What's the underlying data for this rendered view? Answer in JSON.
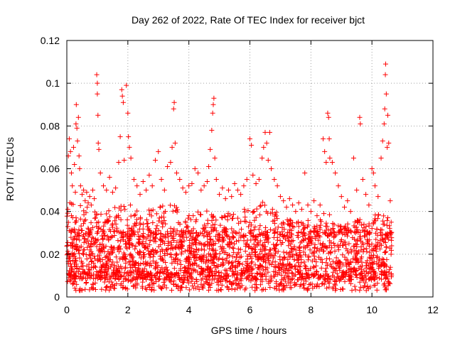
{
  "chart_data": {
    "type": "scatter",
    "title": "Day 262 of 2022, Rate Of TEC Index for receiver bjct",
    "xlabel": "GPS time / hours",
    "ylabel": "ROTI / TECUs",
    "xlim": [
      0,
      12
    ],
    "ylim": [
      0,
      0.12
    ],
    "x_ticks": [
      0,
      2,
      4,
      6,
      8,
      10,
      12
    ],
    "x_tick_labels": [
      "0",
      "2",
      "4",
      "6",
      "8",
      "10",
      "12"
    ],
    "y_ticks": [
      0,
      0.02,
      0.04,
      0.06,
      0.08,
      0.1,
      0.12
    ],
    "y_tick_labels": [
      "0",
      "0.02",
      "0.04",
      "0.06",
      "0.08",
      "0.1",
      "0.12"
    ],
    "grid": true,
    "marker": "+",
    "marker_color": "#ff0000",
    "series": [
      {
        "name": "ROTI",
        "points": [
          [
            0.05,
            0.066
          ],
          [
            0.08,
            0.074
          ],
          [
            0.12,
            0.068
          ],
          [
            0.15,
            0.058
          ],
          [
            0.18,
            0.052
          ],
          [
            0.22,
            0.07
          ],
          [
            0.25,
            0.062
          ],
          [
            0.28,
            0.049
          ],
          [
            0.3,
            0.081
          ],
          [
            0.31,
            0.09
          ],
          [
            0.33,
            0.079
          ],
          [
            0.35,
            0.073
          ],
          [
            0.38,
            0.084
          ],
          [
            0.4,
            0.066
          ],
          [
            0.42,
            0.06
          ],
          [
            0.45,
            0.052
          ],
          [
            0.5,
            0.048
          ],
          [
            0.55,
            0.05
          ],
          [
            0.6,
            0.045
          ],
          [
            0.65,
            0.049
          ],
          [
            0.7,
            0.044
          ],
          [
            0.75,
            0.047
          ],
          [
            0.8,
            0.043
          ],
          [
            0.85,
            0.05
          ],
          [
            0.9,
            0.046
          ],
          [
            0.98,
            0.104
          ],
          [
            1.0,
            0.1
          ],
          [
            1.0,
            0.095
          ],
          [
            1.02,
            0.085
          ],
          [
            1.03,
            0.072
          ],
          [
            1.05,
            0.069
          ],
          [
            1.1,
            0.058
          ],
          [
            1.2,
            0.052
          ],
          [
            1.3,
            0.05
          ],
          [
            1.4,
            0.056
          ],
          [
            1.5,
            0.049
          ],
          [
            1.6,
            0.051
          ],
          [
            1.7,
            0.063
          ],
          [
            1.75,
            0.075
          ],
          [
            1.8,
            0.097
          ],
          [
            1.82,
            0.094
          ],
          [
            1.85,
            0.091
          ],
          [
            1.88,
            0.064
          ],
          [
            1.95,
            0.099
          ],
          [
            2.0,
            0.086
          ],
          [
            2.02,
            0.075
          ],
          [
            2.05,
            0.07
          ],
          [
            2.1,
            0.065
          ],
          [
            2.2,
            0.055
          ],
          [
            2.3,
            0.052
          ],
          [
            2.4,
            0.048
          ],
          [
            2.5,
            0.054
          ],
          [
            2.6,
            0.05
          ],
          [
            2.7,
            0.057
          ],
          [
            2.8,
            0.052
          ],
          [
            2.9,
            0.064
          ],
          [
            3.0,
            0.068
          ],
          [
            3.1,
            0.055
          ],
          [
            3.2,
            0.05
          ],
          [
            3.3,
            0.061
          ],
          [
            3.4,
            0.063
          ],
          [
            3.45,
            0.07
          ],
          [
            3.5,
            0.088
          ],
          [
            3.52,
            0.091
          ],
          [
            3.55,
            0.072
          ],
          [
            3.6,
            0.058
          ],
          [
            3.7,
            0.055
          ],
          [
            3.8,
            0.051
          ],
          [
            3.9,
            0.049
          ],
          [
            4.0,
            0.052
          ],
          [
            4.1,
            0.053
          ],
          [
            4.2,
            0.06
          ],
          [
            4.3,
            0.058
          ],
          [
            4.4,
            0.05
          ],
          [
            4.5,
            0.052
          ],
          [
            4.6,
            0.054
          ],
          [
            4.65,
            0.061
          ],
          [
            4.7,
            0.069
          ],
          [
            4.75,
            0.078
          ],
          [
            4.78,
            0.086
          ],
          [
            4.8,
            0.09
          ],
          [
            4.82,
            0.093
          ],
          [
            4.85,
            0.065
          ],
          [
            4.9,
            0.055
          ],
          [
            5.0,
            0.048
          ],
          [
            5.1,
            0.051
          ],
          [
            5.2,
            0.046
          ],
          [
            5.3,
            0.05
          ],
          [
            5.4,
            0.047
          ],
          [
            5.5,
            0.053
          ],
          [
            5.6,
            0.05
          ],
          [
            5.7,
            0.048
          ],
          [
            5.8,
            0.052
          ],
          [
            5.9,
            0.055
          ],
          [
            6.0,
            0.074
          ],
          [
            6.05,
            0.071
          ],
          [
            6.1,
            0.057
          ],
          [
            6.2,
            0.053
          ],
          [
            6.3,
            0.055
          ],
          [
            6.4,
            0.065
          ],
          [
            6.45,
            0.07
          ],
          [
            6.5,
            0.077
          ],
          [
            6.55,
            0.072
          ],
          [
            6.6,
            0.064
          ],
          [
            6.65,
            0.077
          ],
          [
            6.7,
            0.06
          ],
          [
            6.8,
            0.055
          ],
          [
            6.9,
            0.052
          ],
          [
            7.0,
            0.047
          ],
          [
            7.1,
            0.045
          ],
          [
            7.2,
            0.042
          ],
          [
            7.3,
            0.046
          ],
          [
            7.4,
            0.043
          ],
          [
            7.5,
            0.04
          ],
          [
            7.6,
            0.044
          ],
          [
            7.7,
            0.041
          ],
          [
            7.8,
            0.058
          ],
          [
            7.9,
            0.043
          ],
          [
            8.0,
            0.04
          ],
          [
            8.1,
            0.045
          ],
          [
            8.2,
            0.038
          ],
          [
            8.3,
            0.043
          ],
          [
            8.4,
            0.074
          ],
          [
            8.45,
            0.068
          ],
          [
            8.5,
            0.063
          ],
          [
            8.55,
            0.086
          ],
          [
            8.58,
            0.084
          ],
          [
            8.6,
            0.074
          ],
          [
            8.62,
            0.065
          ],
          [
            8.7,
            0.063
          ],
          [
            8.8,
            0.058
          ],
          [
            8.9,
            0.052
          ],
          [
            9.0,
            0.047
          ],
          [
            9.1,
            0.042
          ],
          [
            9.2,
            0.045
          ],
          [
            9.3,
            0.04
          ],
          [
            9.4,
            0.065
          ],
          [
            9.5,
            0.05
          ],
          [
            9.6,
            0.084
          ],
          [
            9.62,
            0.081
          ],
          [
            9.7,
            0.055
          ],
          [
            9.8,
            0.048
          ],
          [
            9.9,
            0.043
          ],
          [
            10.0,
            0.06
          ],
          [
            10.05,
            0.058
          ],
          [
            10.1,
            0.052
          ],
          [
            10.2,
            0.047
          ],
          [
            10.3,
            0.065
          ],
          [
            10.35,
            0.073
          ],
          [
            10.4,
            0.081
          ],
          [
            10.42,
            0.088
          ],
          [
            10.44,
            0.104
          ],
          [
            10.45,
            0.109
          ],
          [
            10.47,
            0.095
          ],
          [
            10.5,
            0.07
          ],
          [
            10.52,
            0.085
          ],
          [
            10.55,
            0.072
          ],
          [
            10.6,
            0.045
          ],
          [
            10.63,
            0.035
          ]
        ],
        "dense_band": {
          "x_range": [
            0.0,
            10.65
          ],
          "y_min": 0.003,
          "y_typical_low": 0.008,
          "y_typical_high": 0.03,
          "y_envelope": [
            [
              0,
              0.045
            ],
            [
              0.5,
              0.043
            ],
            [
              1,
              0.04
            ],
            [
              1.5,
              0.042
            ],
            [
              2,
              0.045
            ],
            [
              2.5,
              0.04
            ],
            [
              3,
              0.042
            ],
            [
              3.5,
              0.045
            ],
            [
              4,
              0.04
            ],
            [
              4.5,
              0.042
            ],
            [
              5,
              0.038
            ],
            [
              5.5,
              0.04
            ],
            [
              6,
              0.042
            ],
            [
              6.5,
              0.045
            ],
            [
              7,
              0.038
            ],
            [
              7.5,
              0.035
            ],
            [
              8,
              0.036
            ],
            [
              8.5,
              0.04
            ],
            [
              9,
              0.034
            ],
            [
              9.5,
              0.036
            ],
            [
              10,
              0.038
            ],
            [
              10.5,
              0.04
            ],
            [
              10.65,
              0.03
            ]
          ]
        }
      }
    ]
  }
}
